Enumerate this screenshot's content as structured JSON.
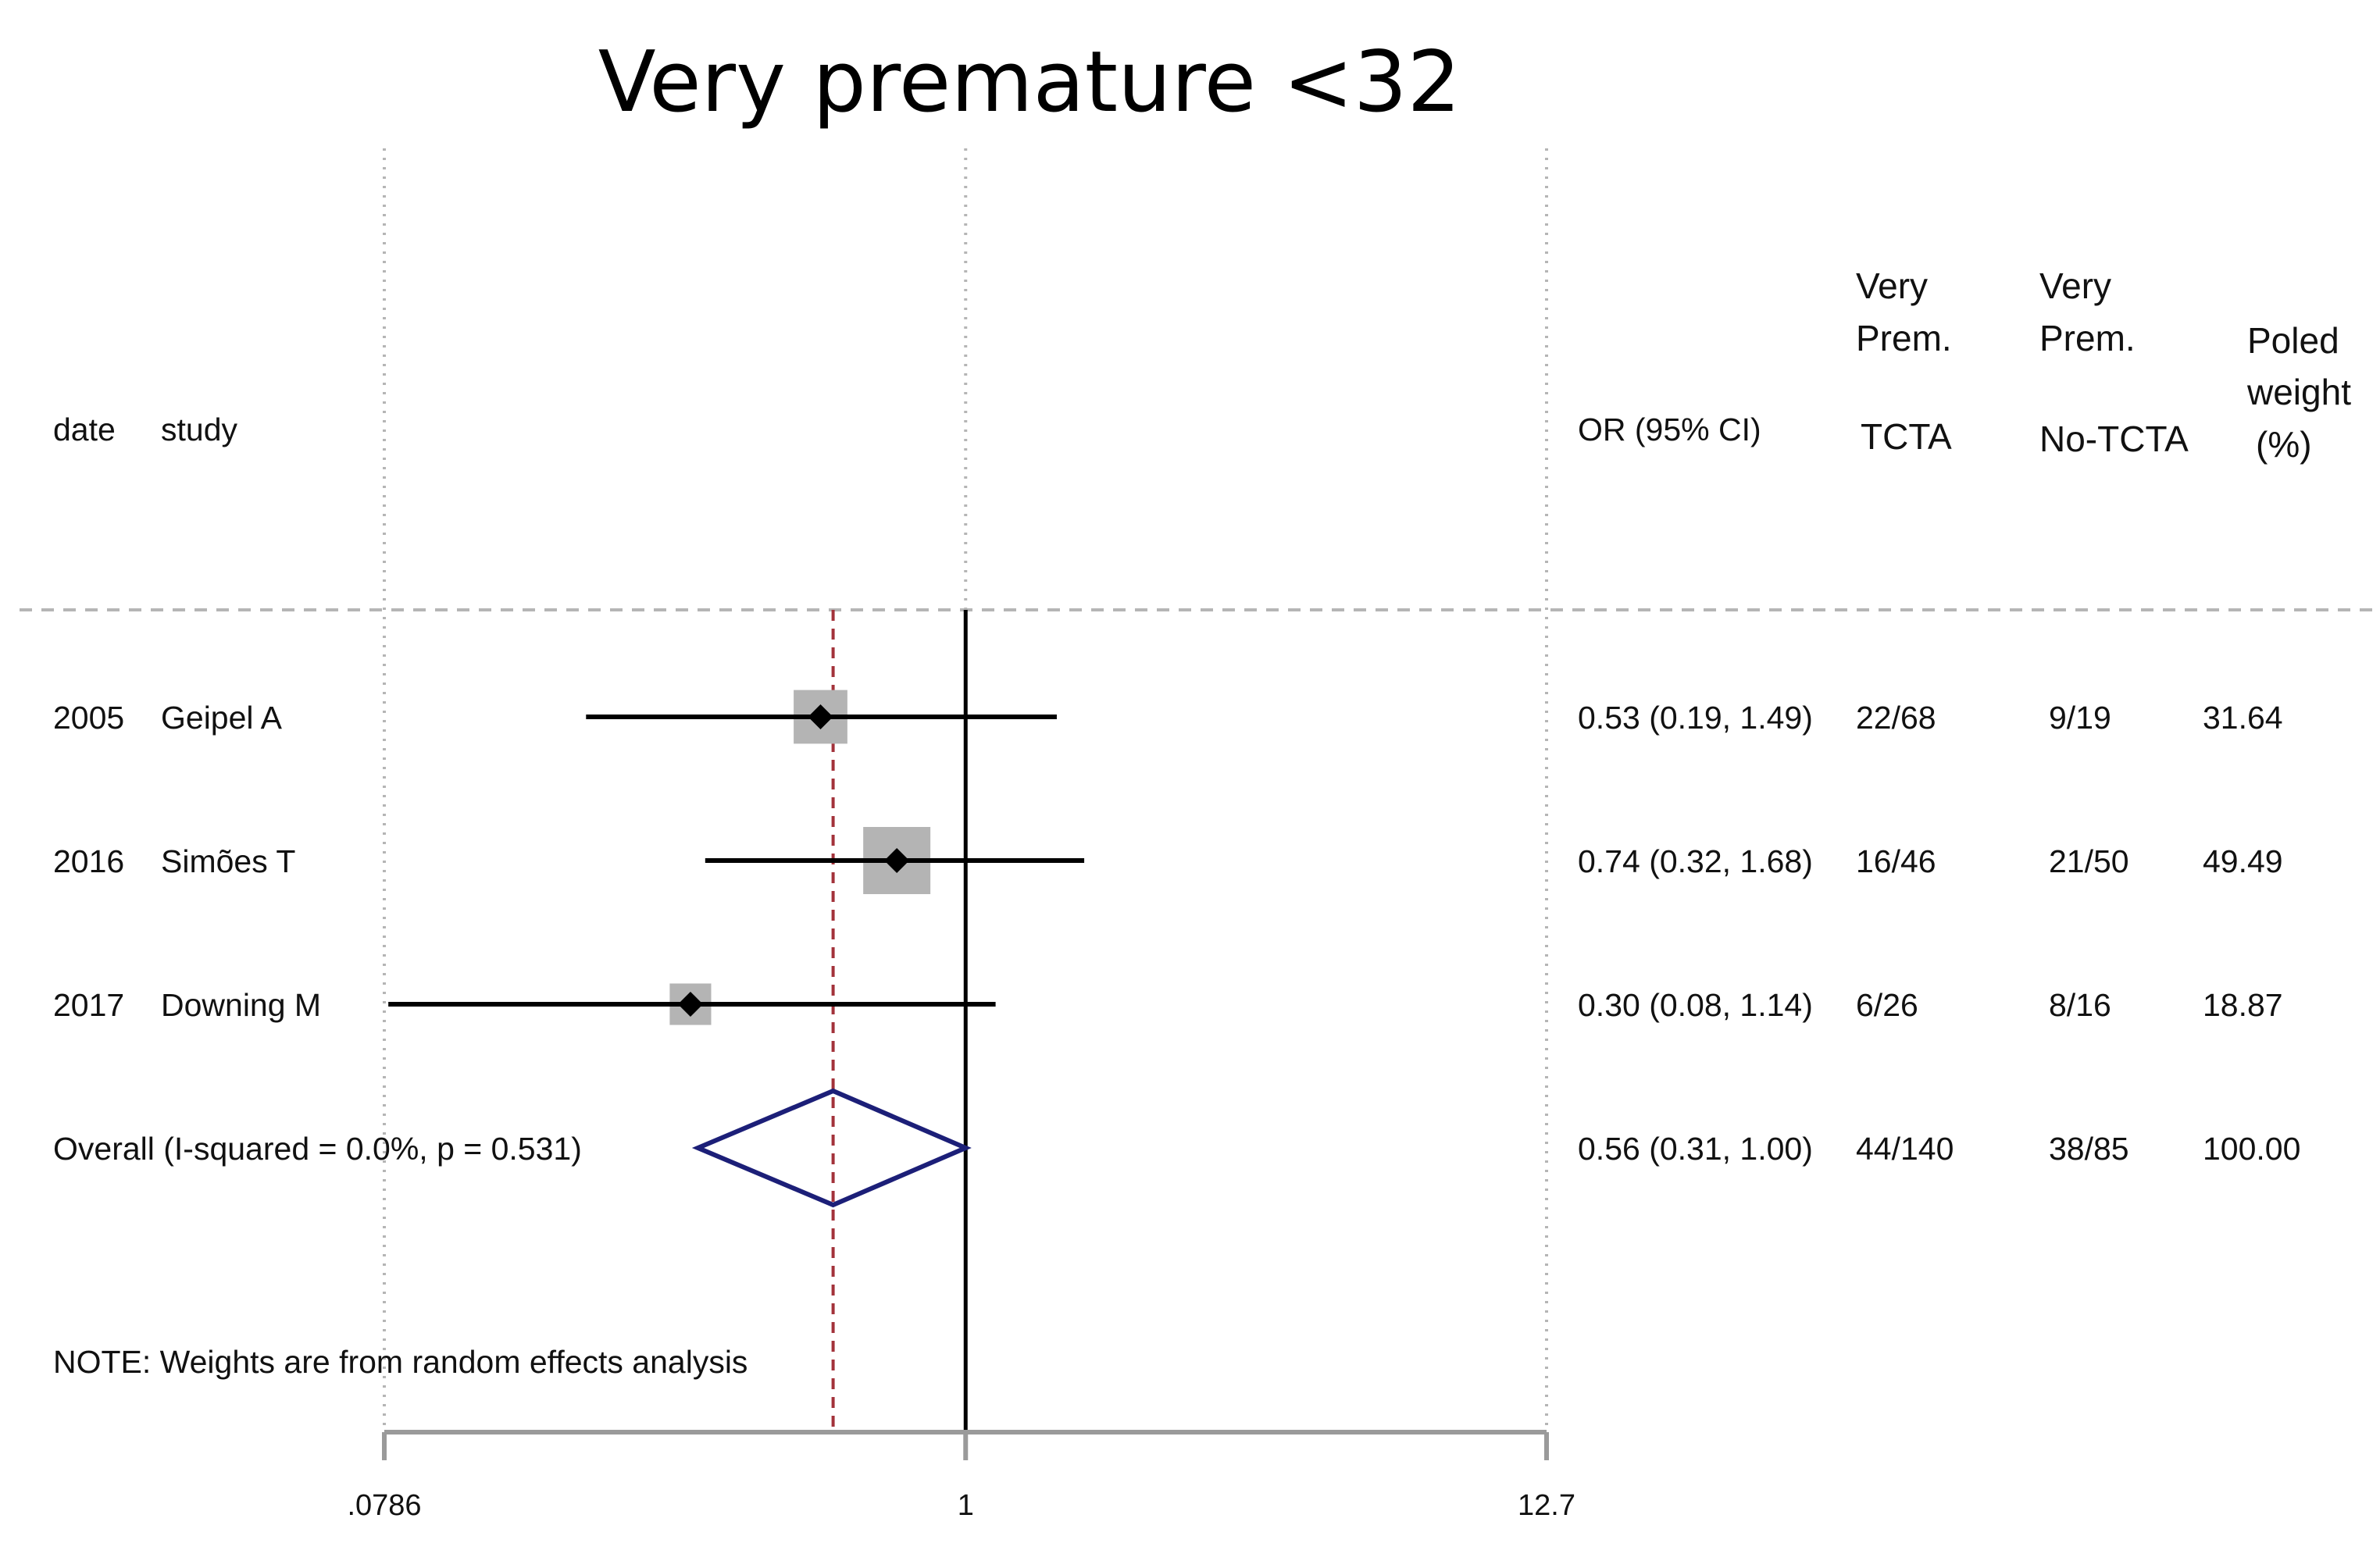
{
  "chart_data": {
    "type": "forest",
    "title": "Very premature <32",
    "scale": "log",
    "xlim": [
      0.0786,
      12.7
    ],
    "xticks": [
      {
        "value": 0.0786,
        "label": ".0786"
      },
      {
        "value": 1,
        "label": "1"
      },
      {
        "value": 12.7,
        "label": "12.7"
      }
    ],
    "null_line": 1,
    "columns": {
      "date": "date",
      "study": "study",
      "or": "OR (95% CI)",
      "tcta": [
        "Very",
        "Prem.",
        "TCTA"
      ],
      "notcta": [
        "Very",
        "Prem.",
        "No-TCTA"
      ],
      "weight": [
        "Poled",
        "weight",
        "(%)"
      ]
    },
    "studies": [
      {
        "date": "2005",
        "study": "Geipel A",
        "or": 0.53,
        "lower": 0.19,
        "upper": 1.49,
        "or_text": "0.53 (0.19, 1.49)",
        "tcta": "22/68",
        "notcta": "9/19",
        "weight": 31.64,
        "weight_text": "31.64"
      },
      {
        "date": "2016",
        "study": "Simões T",
        "or": 0.74,
        "lower": 0.32,
        "upper": 1.68,
        "or_text": "0.74 (0.32, 1.68)",
        "tcta": "16/46",
        "notcta": "21/50",
        "weight": 49.49,
        "weight_text": "49.49"
      },
      {
        "date": "2017",
        "study": "Downing M",
        "or": 0.3,
        "lower": 0.08,
        "upper": 1.14,
        "or_text": "0.30 (0.08, 1.14)",
        "tcta": "6/26",
        "notcta": "8/16",
        "weight": 18.87,
        "weight_text": "18.87"
      }
    ],
    "overall": {
      "label": "Overall  (I-squared = 0.0%, p = 0.531)",
      "or": 0.56,
      "lower": 0.31,
      "upper": 1.0,
      "or_text": "0.56 (0.31, 1.00)",
      "tcta": "44/140",
      "notcta": "38/85",
      "weight_text": "100.00"
    },
    "note": "NOTE: Weights are from random effects analysis",
    "colors": {
      "diamond": "#1c1f78",
      "pooled_line": "#a3323a",
      "box": "#b4b4b4",
      "axis": "#9a9a9a",
      "grid": "#b5b5b5"
    }
  }
}
